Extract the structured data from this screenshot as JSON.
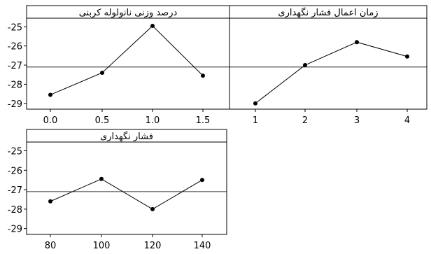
{
  "chart_data": [
    {
      "type": "line",
      "title": "درصد وزنی نانولوله کربنی",
      "categories": [
        "0.0",
        "0.5",
        "1.0",
        "1.5"
      ],
      "x": [
        0.0,
        0.5,
        1.0,
        1.5
      ],
      "values": [
        -28.55,
        -27.4,
        -24.95,
        -27.55
      ],
      "reference_line": -27.1,
      "ylim": [
        -29.3,
        -24.55
      ],
      "yticks": [
        -25,
        -26,
        -27,
        -28,
        -29
      ],
      "show_y_ticks": true,
      "grid": false
    },
    {
      "type": "line",
      "title": "زمان اعمال فشار نگهداری",
      "categories": [
        "1",
        "2",
        "3",
        "4"
      ],
      "x": [
        1,
        2,
        3,
        4
      ],
      "values": [
        -29.0,
        -27.0,
        -25.8,
        -26.55
      ],
      "reference_line": -27.1,
      "ylim": [
        -29.3,
        -24.55
      ],
      "yticks": [],
      "show_y_ticks": false,
      "grid": false
    },
    {
      "type": "line",
      "title": "فشار نگهداری",
      "categories": [
        "80",
        "100",
        "120",
        "140"
      ],
      "x": [
        80,
        100,
        120,
        140
      ],
      "values": [
        -27.6,
        -26.45,
        -28.0,
        -26.5
      ],
      "reference_line": -27.1,
      "ylim": [
        -29.3,
        -24.55
      ],
      "yticks": [
        -25,
        -26,
        -27,
        -28,
        -29
      ],
      "show_y_ticks": true,
      "grid": false
    }
  ]
}
